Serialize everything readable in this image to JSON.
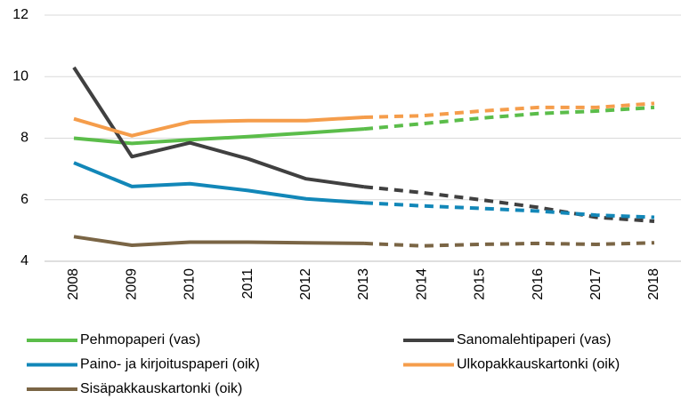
{
  "chart_data": {
    "type": "line",
    "categories": [
      "2008",
      "2009",
      "2010",
      "2011",
      "2012",
      "2013",
      "2014",
      "2015",
      "2016",
      "2017",
      "2018"
    ],
    "series": [
      {
        "name": "Pehmopaperi (vas)",
        "color": "#5bbd4a",
        "values": [
          8.0,
          7.83,
          7.95,
          8.05,
          8.17,
          8.3,
          8.47,
          8.65,
          8.8,
          8.88,
          9.0
        ]
      },
      {
        "name": "Sanomalehtipaperi (vas)",
        "color": "#404040",
        "values": [
          10.3,
          7.4,
          7.85,
          7.33,
          6.68,
          6.42,
          6.23,
          6.0,
          5.75,
          5.43,
          5.3
        ]
      },
      {
        "name": "Paino- ja kirjoituspaperi (oik)",
        "color": "#1287b8",
        "values": [
          7.2,
          6.43,
          6.52,
          6.3,
          6.03,
          5.9,
          5.8,
          5.72,
          5.63,
          5.5,
          5.43
        ]
      },
      {
        "name": "Ulkopakkauskartonki (oik)",
        "color": "#f59d4b",
        "values": [
          8.63,
          8.08,
          8.53,
          8.57,
          8.57,
          8.68,
          8.73,
          8.88,
          9.0,
          9.0,
          9.13
        ]
      },
      {
        "name": "Sisäpakkauskartonki (oik)",
        "color": "#7a6545",
        "values": [
          4.8,
          4.52,
          4.62,
          4.62,
          4.6,
          4.58,
          4.5,
          4.55,
          4.58,
          4.55,
          4.6
        ]
      }
    ],
    "ylim": [
      4,
      12
    ],
    "yticks": [
      4,
      6,
      8,
      10,
      12
    ],
    "grid": true,
    "dashed_from": "2013",
    "legend": "bottom"
  }
}
